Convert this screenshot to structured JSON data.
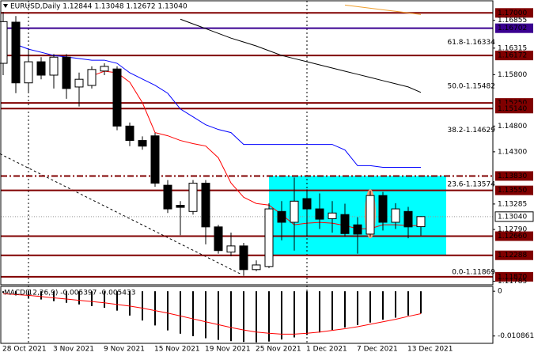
{
  "chart_data": [
    {
      "type": "candlestick",
      "title": "EURUSD,Daily  1.12844 1.13048 1.12672 1.13040",
      "categories": [
        "28 Oct 2021",
        null,
        null,
        null,
        "3 Nov 2021",
        null,
        null,
        null,
        "9 Nov 2021",
        null,
        null,
        null,
        "15 Nov 2021",
        null,
        null,
        null,
        "19 Nov 2021",
        null,
        null,
        null,
        "25 Nov 2021",
        null,
        null,
        null,
        "1 Dec 2021",
        null,
        null,
        null,
        "7 Dec 2021",
        null,
        null,
        null,
        "13 Dec 2021",
        null
      ],
      "open": [
        1.1602,
        1.1682,
        1.1564,
        1.1605,
        1.1579,
        1.1614,
        1.1556,
        1.1559,
        1.1587,
        1.1591,
        1.148,
        1.1452,
        1.1461,
        1.1365,
        1.1326,
        1.1314,
        1.1369,
        1.1284,
        1.1235,
        1.1247,
        1.1201,
        1.1207,
        1.1314,
        1.1293,
        1.1339,
        1.1319,
        1.13,
        1.1308,
        1.1288,
        1.127,
        1.1345,
        1.1293,
        1.1314,
        1.12844
      ],
      "high": [
        1.1702,
        1.1694,
        1.163,
        1.1614,
        1.162,
        1.162,
        1.1584,
        1.1596,
        1.1602,
        1.1596,
        1.1487,
        1.146,
        1.1467,
        1.1375,
        1.1334,
        1.1375,
        1.1375,
        1.1288,
        1.1273,
        1.1253,
        1.1219,
        1.133,
        1.1334,
        1.138,
        1.1357,
        1.1349,
        1.1334,
        1.1329,
        1.1303,
        1.1354,
        1.1352,
        1.133,
        1.1323,
        1.13048
      ],
      "low": [
        1.1579,
        1.1544,
        1.1544,
        1.1571,
        1.1553,
        1.1533,
        1.1518,
        1.1553,
        1.1579,
        1.1472,
        1.1441,
        1.1434,
        1.1362,
        1.1311,
        1.1268,
        1.1308,
        1.125,
        1.1232,
        1.1227,
        1.1189,
        1.1198,
        1.1204,
        1.1258,
        1.1238,
        1.1265,
        1.128,
        1.1273,
        1.1265,
        1.1232,
        1.1265,
        1.1277,
        1.128,
        1.1262,
        1.12672
      ],
      "close": [
        1.1683,
        1.1564,
        1.1605,
        1.1579,
        1.1614,
        1.1553,
        1.1571,
        1.159,
        1.1596,
        1.148,
        1.1452,
        1.1441,
        1.1369,
        1.1319,
        1.1322,
        1.1369,
        1.1284,
        1.1238,
        1.1247,
        1.1201,
        1.121,
        1.1319,
        1.1293,
        1.1334,
        1.1319,
        1.1299,
        1.1311,
        1.1271,
        1.127,
        1.1345,
        1.1293,
        1.1319,
        1.1284,
        1.1304
      ],
      "up_color": "#ffffff",
      "down_color": "#000000",
      "series": [
        {
          "color": "#ff0000",
          "values": [
            null,
            null,
            null,
            null,
            null,
            null,
            null,
            1.15775,
            1.15867,
            1.15836,
            1.15653,
            1.15255,
            1.14673,
            1.14612,
            1.1452,
            1.14459,
            1.14413,
            1.14183,
            1.13693,
            1.13417,
            1.13295,
            1.13264,
            1.13081,
            1.12882,
            1.12912,
            1.12928,
            1.12912,
            1.12866,
            1.12805,
            1.12805,
            1.12882,
            1.12882,
            1.12866,
            1.12866
          ]
        },
        {
          "color": "#0000ff",
          "values": [
            null,
            1.16388,
            1.16296,
            1.16235,
            1.16173,
            1.16143,
            1.16112,
            1.16081,
            1.16081,
            1.1602,
            1.15836,
            1.15714,
            1.15592,
            1.15438,
            1.15132,
            1.14979,
            1.14826,
            1.14734,
            1.14673,
            1.14443,
            1.14443,
            1.14443,
            1.14443,
            1.14443,
            1.14443,
            1.14443,
            1.14443,
            1.14336,
            1.1403,
            1.1403,
            1.13999,
            1.13999,
            1.13999,
            1.13999
          ]
        },
        {
          "color": "#000000",
          "values": [
            null,
            null,
            null,
            null,
            null,
            null,
            null,
            null,
            null,
            null,
            null,
            null,
            null,
            null,
            1.16878,
            1.16786,
            1.16694,
            1.16602,
            1.1651,
            1.16434,
            1.16357,
            1.16265,
            1.16173,
            1.16112,
            1.16051,
            1.1599,
            1.15928,
            1.15867,
            1.15806,
            1.15745,
            1.15683,
            1.15622,
            1.15561,
            1.15454
          ]
        },
        {
          "color": "#f0a030",
          "values": [
            null,
            null,
            null,
            null,
            null,
            null,
            null,
            null,
            null,
            null,
            null,
            null,
            null,
            null,
            null,
            null,
            null,
            null,
            null,
            null,
            null,
            null,
            null,
            null,
            null,
            null,
            null,
            1.17153,
            1.17122,
            1.17092,
            1.17061,
            1.17031,
            1.17,
            1.16969
          ]
        }
      ],
      "ylim": [
        1.1173,
        1.1722
      ],
      "yticks": [
        {
          "value": 1.16855,
          "label": "1.16855"
        },
        {
          "value": 1.16315,
          "label": "1.16315"
        },
        {
          "value": 1.158,
          "label": "1.15800"
        },
        {
          "value": 1.148,
          "label": "1.14800"
        },
        {
          "value": 1.143,
          "label": "1.14300"
        },
        {
          "value": 1.13285,
          "label": "1.13285"
        },
        {
          "value": 1.1279,
          "label": "1.12790"
        },
        {
          "value": 1.11785,
          "label": "1.11785"
        }
      ],
      "levels": [
        {
          "value": 1.17,
          "label": "1.17000",
          "color": "#800000"
        },
        {
          "value": 1.16702,
          "label": "1.16702",
          "color": "#3a0090"
        },
        {
          "value": 1.16172,
          "label": "1.16172",
          "color": "#800000"
        },
        {
          "value": 1.1525,
          "label": "1.15250",
          "color": "#800000"
        },
        {
          "value": 1.1514,
          "label": "1.15140",
          "color": "#800000"
        },
        {
          "value": 1.1383,
          "label": "1.13830",
          "color": "#800000"
        },
        {
          "value": 1.1355,
          "label": "1.13550",
          "color": "#800000"
        },
        {
          "value": 1.1266,
          "label": "1.12660",
          "color": "#800000"
        },
        {
          "value": 1.12288,
          "label": "1.12288",
          "color": "#800000"
        },
        {
          "value": 1.1187,
          "label": "1.11870",
          "color": "#800000"
        },
        {
          "value": 1.1304,
          "label": "1.13040",
          "color": "#ffffff"
        }
      ],
      "fib_levels": [
        {
          "value": 1.16334,
          "label": "61.8-1.16334"
        },
        {
          "value": 1.15482,
          "label": "50.0-1.15482"
        },
        {
          "value": 1.14629,
          "label": "38.2-1.14629"
        },
        {
          "value": 1.13574,
          "label": "23.6-1.13574"
        },
        {
          "value": 1.11869,
          "label": "0.0-1.11869"
        }
      ],
      "zone": {
        "ylim": [
          1.12288,
          1.1383
        ],
        "x": [
          21,
          35
        ],
        "color": "#00ffff"
      },
      "highlight": {
        "index": 29,
        "color": "#f4a582"
      },
      "vlines": [
        2,
        24
      ],
      "trendline": {
        "x": [
          -0.25,
          18.8
        ],
        "y": [
          1.1426,
          1.1192
        ]
      }
    },
    {
      "type": "bar",
      "title": "MACD(12,26,9) -0.005397 -0.005433",
      "values": [
        -0.0004,
        -0.001,
        -0.0016,
        -0.002,
        -0.0024,
        -0.0028,
        -0.0032,
        -0.0036,
        -0.004,
        -0.0047,
        -0.0059,
        -0.0071,
        -0.0083,
        -0.0095,
        -0.0103,
        -0.0109,
        -0.0114,
        -0.0118,
        -0.0121,
        -0.0123,
        -0.0124,
        -0.0122,
        -0.0117,
        -0.0112,
        -0.0106,
        -0.01,
        -0.0094,
        -0.0088,
        -0.0082,
        -0.0076,
        -0.0069,
        -0.0064,
        -0.0059,
        -0.005397
      ],
      "color": "#000000",
      "series": [
        {
          "color": "#ff0000",
          "values": [
            -0.0006,
            -0.0008,
            -0.001,
            -0.0013,
            -0.0016,
            -0.0019,
            -0.0022,
            -0.0025,
            -0.0028,
            -0.0032,
            -0.0036,
            -0.0041,
            -0.0047,
            -0.0053,
            -0.006,
            -0.0067,
            -0.0074,
            -0.0081,
            -0.0088,
            -0.0094,
            -0.0099,
            -0.0102,
            -0.0104,
            -0.0104,
            -0.0102,
            -0.0099,
            -0.0095,
            -0.0091,
            -0.0086,
            -0.008,
            -0.0074,
            -0.0068,
            -0.0061,
            -0.005433
          ]
        }
      ],
      "ylim": [
        -0.01264,
        0.00118
      ],
      "yticks": [
        0,
        -0.010861
      ]
    }
  ]
}
